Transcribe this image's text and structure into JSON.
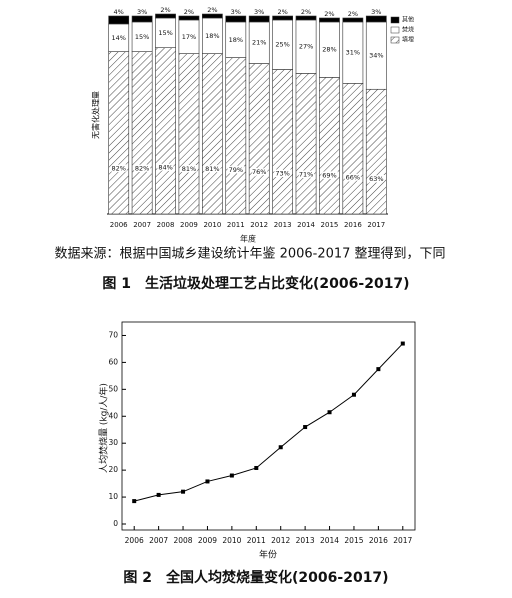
{
  "chart_data": [
    {
      "type": "stacked_bar",
      "ylabel": "无害化处理量",
      "xlabel": "年度",
      "note": "数据来源：根据中国城乡建设统计年鉴 2006-2017 整理得到，下同",
      "caption": "图 1　生活垃圾处理工艺占比变化(2006-2017)",
      "categories": [
        "2006",
        "2007",
        "2008",
        "2009",
        "2010",
        "2011",
        "2012",
        "2013",
        "2014",
        "2015",
        "2016",
        "2017"
      ],
      "ylim": [
        0,
        100
      ],
      "series": [
        {
          "name": "其他",
          "color": "#000000",
          "values": [
            4,
            3,
            2,
            2,
            2,
            3,
            3,
            2,
            2,
            2,
            2,
            3
          ],
          "value_labels": [
            "4%",
            "3%",
            "2%",
            "2%",
            "2%",
            "3%",
            "3%",
            "2%",
            "2%",
            "2%",
            "2%",
            "3%"
          ]
        },
        {
          "name": "焚烧",
          "color": "#ffffff",
          "values": [
            14,
            15,
            15,
            17,
            18,
            18,
            21,
            25,
            27,
            28,
            31,
            34
          ],
          "value_labels": [
            "14%",
            "15%",
            "15%",
            "17%",
            "18%",
            "18%",
            "21%",
            "25%",
            "27%",
            "28%",
            "31%",
            "34%"
          ]
        },
        {
          "name": "填埋",
          "color": "#ffffff",
          "pattern": "hatch",
          "values": [
            82,
            82,
            84,
            81,
            81,
            79,
            76,
            73,
            71,
            69,
            66,
            63
          ],
          "value_labels": [
            "82%",
            "82%",
            "84%",
            "81%",
            "81%",
            "79%",
            "76%",
            "73%",
            "71%",
            "69%",
            "66%",
            "63%"
          ]
        }
      ],
      "legend": "upper right"
    },
    {
      "type": "line",
      "ylabel": "人均焚烧量 (kg/人/年)",
      "xlabel": "年份",
      "caption": "图 2　全国人均焚烧量变化(2006-2017)",
      "categories": [
        "2006",
        "2007",
        "2008",
        "2009",
        "2010",
        "2011",
        "2012",
        "2013",
        "2014",
        "2015",
        "2016",
        "2017"
      ],
      "values": [
        8.5,
        10.8,
        12,
        15.8,
        18,
        20.8,
        28.5,
        36,
        41.5,
        48,
        57.5,
        67
      ],
      "color": "#000000",
      "ylim": [
        0,
        75
      ],
      "yticks": [
        0,
        10,
        20,
        30,
        40,
        50,
        60,
        70
      ]
    }
  ]
}
